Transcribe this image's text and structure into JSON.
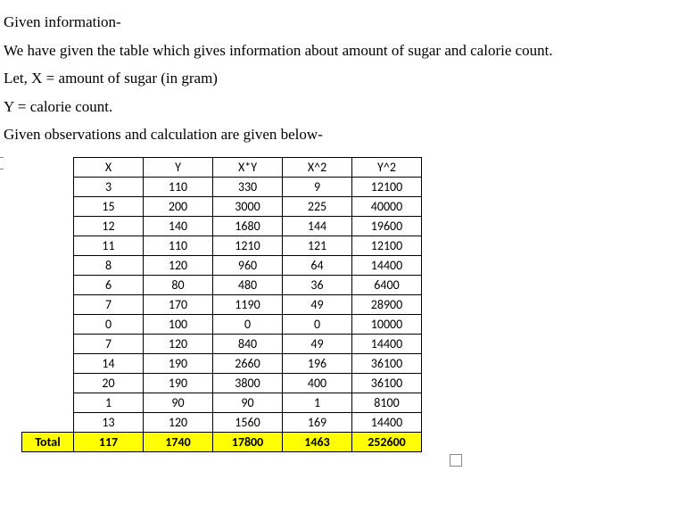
{
  "text": {
    "line1": "Given information-",
    "line2": "We have given the table which gives information about amount of sugar and calorie count.",
    "line3": "Let, X = amount of sugar (in gram)",
    "line4": "Y = calorie count.",
    "line5": "Given observations and calculation are given below-",
    "total_label": "Total"
  },
  "table": {
    "columns": [
      "X",
      "Y",
      "X*Y",
      "X^2",
      "Y^2"
    ],
    "rows": [
      [
        "3",
        "110",
        "330",
        "9",
        "12100"
      ],
      [
        "15",
        "200",
        "3000",
        "225",
        "40000"
      ],
      [
        "12",
        "140",
        "1680",
        "144",
        "19600"
      ],
      [
        "11",
        "110",
        "1210",
        "121",
        "12100"
      ],
      [
        "8",
        "120",
        "960",
        "64",
        "14400"
      ],
      [
        "6",
        "80",
        "480",
        "36",
        "6400"
      ],
      [
        "7",
        "170",
        "1190",
        "49",
        "28900"
      ],
      [
        "0",
        "100",
        "0",
        "0",
        "10000"
      ],
      [
        "7",
        "120",
        "840",
        "49",
        "14400"
      ],
      [
        "14",
        "190",
        "2660",
        "196",
        "36100"
      ],
      [
        "20",
        "190",
        "3800",
        "400",
        "36100"
      ],
      [
        "1",
        "90",
        "90",
        "1",
        "8100"
      ],
      [
        "13",
        "120",
        "1560",
        "169",
        "14400"
      ]
    ],
    "totals": [
      "117",
      "1740",
      "17800",
      "1463",
      "252600"
    ],
    "highlight_color": "#ffff00",
    "border_color": "#000000",
    "header_font_weight": "normal"
  }
}
